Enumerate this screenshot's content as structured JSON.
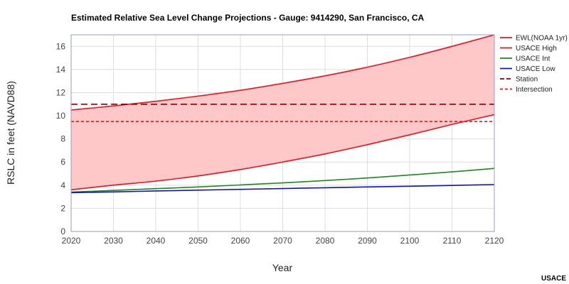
{
  "chart_data": {
    "type": "line",
    "title": "Estimated Relative Sea Level Change Projections - Gauge: 9414290, San Francisco, CA",
    "xlabel": "Year",
    "ylabel": "RSLC in feet (NAVD88)",
    "xlim": [
      2020,
      2120
    ],
    "ylim": [
      0,
      17
    ],
    "xticks": [
      "2020",
      "2030",
      "2040",
      "2050",
      "2060",
      "2070",
      "2080",
      "2090",
      "2100",
      "2110",
      "2120"
    ],
    "yticks": [
      "0",
      "2",
      "4",
      "6",
      "8",
      "10",
      "12",
      "14",
      "16"
    ],
    "grid": true,
    "legend_position": "right",
    "x": [
      2020,
      2030,
      2040,
      2050,
      2060,
      2070,
      2080,
      2090,
      2100,
      2110,
      2120
    ],
    "shaded_band": {
      "name": "EWL(NOAA 1yr)",
      "upper": [
        10.5,
        10.85,
        11.25,
        11.7,
        12.2,
        12.8,
        13.45,
        14.2,
        15.05,
        16.0,
        17.0
      ],
      "lower": [
        3.6,
        4.0,
        4.35,
        4.8,
        5.35,
        6.0,
        6.7,
        7.5,
        8.35,
        9.25,
        10.1
      ],
      "fill": "#ffc8c8"
    },
    "series": [
      {
        "name": "EWL(NOAA 1yr)",
        "color": "#e8141c",
        "dash": "solid",
        "values": [
          10.5,
          10.85,
          11.25,
          11.7,
          12.2,
          12.8,
          13.45,
          14.2,
          15.05,
          16.0,
          17.0
        ]
      },
      {
        "name": "USACE High",
        "color": "#e8141c",
        "dash": "solid",
        "values": [
          3.6,
          4.0,
          4.35,
          4.8,
          5.35,
          6.0,
          6.7,
          7.5,
          8.35,
          9.25,
          10.1
        ]
      },
      {
        "name": "USACE Int",
        "color": "#1a8a1a",
        "dash": "solid",
        "values": [
          3.4,
          3.55,
          3.7,
          3.85,
          4.02,
          4.2,
          4.4,
          4.62,
          4.88,
          5.15,
          5.45
        ]
      },
      {
        "name": "USACE Low",
        "color": "#1010c8",
        "dash": "solid",
        "values": [
          3.35,
          3.42,
          3.5,
          3.57,
          3.64,
          3.71,
          3.78,
          3.85,
          3.91,
          3.98,
          4.05
        ]
      },
      {
        "name": "Station",
        "color": "#8b0000",
        "dash": "long-dash",
        "values": [
          11.0,
          11.0,
          11.0,
          11.0,
          11.0,
          11.0,
          11.0,
          11.0,
          11.0,
          11.0,
          11.0
        ]
      },
      {
        "name": "Intersection",
        "color": "#e8141c",
        "dash": "short-dash",
        "values": [
          9.5,
          9.5,
          9.5,
          9.5,
          9.5,
          9.5,
          9.5,
          9.5,
          9.5,
          9.5,
          9.5
        ]
      }
    ],
    "legend": [
      {
        "label": "EWL(NOAA 1yr)",
        "color": "#e8141c",
        "dash": "solid"
      },
      {
        "label": "USACE High",
        "color": "#e8141c",
        "dash": "solid"
      },
      {
        "label": "USACE Int",
        "color": "#1a8a1a",
        "dash": "solid"
      },
      {
        "label": "USACE Low",
        "color": "#1010c8",
        "dash": "solid"
      },
      {
        "label": "Station",
        "color": "#8b0000",
        "dash": "long-dash"
      },
      {
        "label": "Intersection",
        "color": "#e8141c",
        "dash": "short-dash"
      }
    ]
  },
  "footer": {
    "credit": "USACE"
  }
}
